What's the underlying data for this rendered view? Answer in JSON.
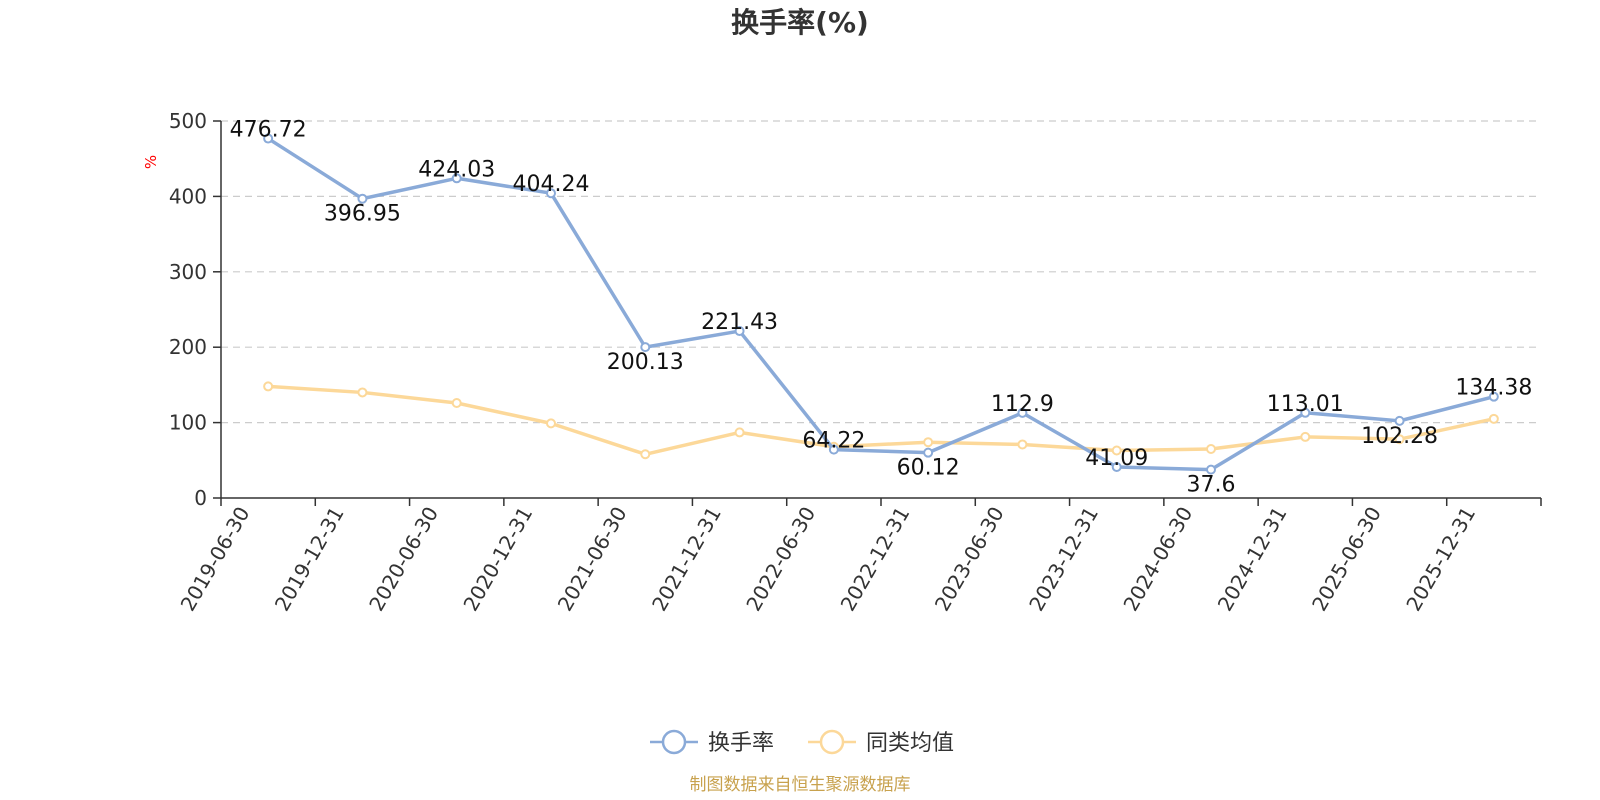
{
  "chart_data": {
    "type": "line",
    "title": "换手率(%)",
    "ylabel": "%",
    "ylim": [
      0,
      500
    ],
    "yticks": [
      0,
      100,
      200,
      300,
      400,
      500
    ],
    "grid": true,
    "legend_position": "bottom",
    "categories": [
      "2019-06-30",
      "2019-12-31",
      "2020-06-30",
      "2020-12-31",
      "2021-06-30",
      "2021-12-31",
      "2022-06-30",
      "2022-12-31",
      "2023-06-30",
      "2023-12-31",
      "2024-06-30",
      "2024-12-31",
      "2025-06-30",
      "2025-12-31"
    ],
    "series": [
      {
        "name": "换手率",
        "color": "#8aaad8",
        "values": [
          476.72,
          396.95,
          424.03,
          404.24,
          200.13,
          221.43,
          64.22,
          60.12,
          112.9,
          41.09,
          37.6,
          113.01,
          102.28,
          134.38
        ],
        "labels": [
          "476.72",
          "396.95",
          "424.03",
          "404.24",
          "200.13",
          "221.43",
          "64.22",
          "60.12",
          "112.9",
          "41.09",
          "37.6",
          "113.01",
          "102.28",
          "134.38"
        ]
      },
      {
        "name": "同类均值",
        "color": "#fcd899",
        "values": [
          148,
          140,
          126,
          99,
          58,
          87,
          68,
          74,
          71,
          63,
          65,
          81,
          78,
          105
        ]
      }
    ]
  },
  "source_note": "制图数据来自恒生聚源数据库",
  "colors": {
    "title": "#333333",
    "axis": "#333333",
    "ylabel": "#ff0000",
    "source": "#c8a24e"
  }
}
